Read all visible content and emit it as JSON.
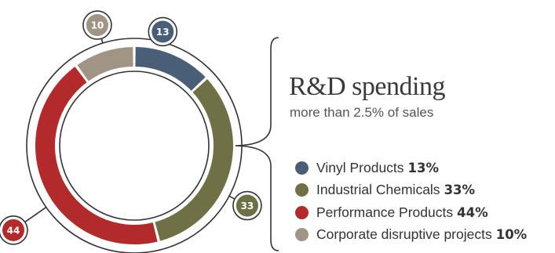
{
  "chart_data": {
    "type": "pie",
    "title": "R&D spending",
    "subtitle": "more than 2.5% of sales",
    "slices": [
      {
        "name": "Vinyl Products",
        "value": 13,
        "label": "13%",
        "badge": "13",
        "color": "#4a5e78"
      },
      {
        "name": "Industrial Chemicals",
        "value": 33,
        "label": "33%",
        "badge": "33",
        "color": "#6f7045"
      },
      {
        "name": "Performance Products",
        "value": 44,
        "label": "44%",
        "badge": "44",
        "color": "#b22a2a"
      },
      {
        "name": "Corporate disruptive projects",
        "value": 10,
        "label": "10%",
        "badge": "10",
        "color": "#a09484"
      }
    ]
  }
}
